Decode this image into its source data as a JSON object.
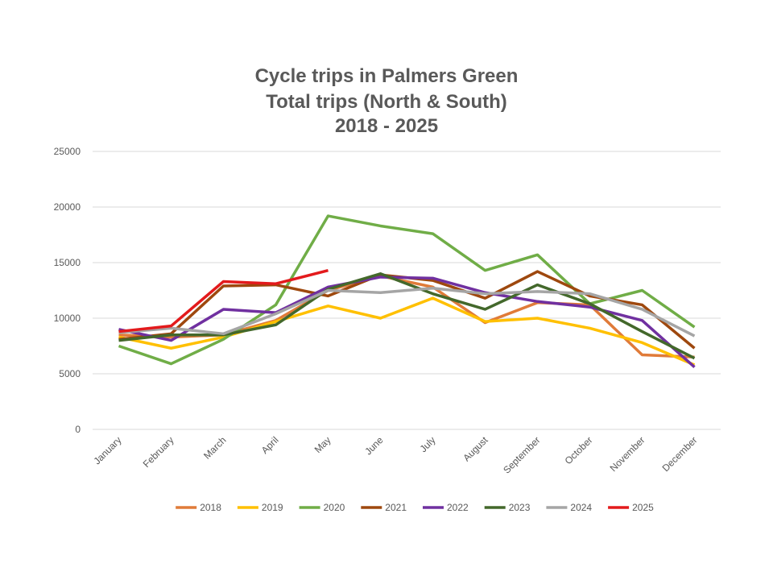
{
  "chart_data": {
    "type": "line",
    "title": [
      "Cycle trips in Palmers Green",
      "Total trips (North & South)",
      "2018 - 2025"
    ],
    "categories": [
      "January",
      "February",
      "March",
      "April",
      "May",
      "June",
      "July",
      "August",
      "September",
      "October",
      "November",
      "December"
    ],
    "ylim": [
      0,
      25000
    ],
    "yticks": [
      0,
      5000,
      10000,
      15000,
      20000,
      25000
    ],
    "grid": true,
    "legend": "bottom",
    "series": [
      {
        "name": "2018",
        "color": "#E07B39",
        "values": [
          8500,
          8300,
          8500,
          9800,
          12500,
          13800,
          12800,
          9600,
          11400,
          11200,
          6700,
          6500
        ]
      },
      {
        "name": "2019",
        "color": "#FFC000",
        "values": [
          8300,
          7300,
          8300,
          9700,
          11100,
          10000,
          11800,
          9700,
          10000,
          9100,
          7800,
          5800
        ]
      },
      {
        "name": "2020",
        "color": "#70AD47",
        "values": [
          7500,
          5900,
          8100,
          11200,
          19200,
          18300,
          17600,
          14300,
          15700,
          11300,
          12500,
          9200
        ]
      },
      {
        "name": "2021",
        "color": "#9E480E",
        "values": [
          8100,
          8600,
          12900,
          13000,
          12000,
          13900,
          13400,
          11800,
          14200,
          12000,
          11200,
          7300
        ]
      },
      {
        "name": "2022",
        "color": "#7030A0",
        "values": [
          9000,
          8000,
          10800,
          10500,
          12800,
          13700,
          13600,
          12300,
          11500,
          11000,
          9800,
          5600
        ]
      },
      {
        "name": "2023",
        "color": "#43682B",
        "values": [
          8000,
          8500,
          8500,
          9400,
          12600,
          14000,
          12200,
          10800,
          13000,
          11300,
          8800,
          6400
        ]
      },
      {
        "name": "2024",
        "color": "#A5A5A5",
        "values": [
          8700,
          9100,
          8600,
          10400,
          12500,
          12300,
          12700,
          12200,
          12400,
          12200,
          10800,
          8400
        ]
      },
      {
        "name": "2025",
        "color": "#E31A1C",
        "values": [
          8800,
          9300,
          13300,
          13100,
          14300,
          null,
          null,
          null,
          null,
          null,
          null,
          null
        ]
      }
    ]
  }
}
